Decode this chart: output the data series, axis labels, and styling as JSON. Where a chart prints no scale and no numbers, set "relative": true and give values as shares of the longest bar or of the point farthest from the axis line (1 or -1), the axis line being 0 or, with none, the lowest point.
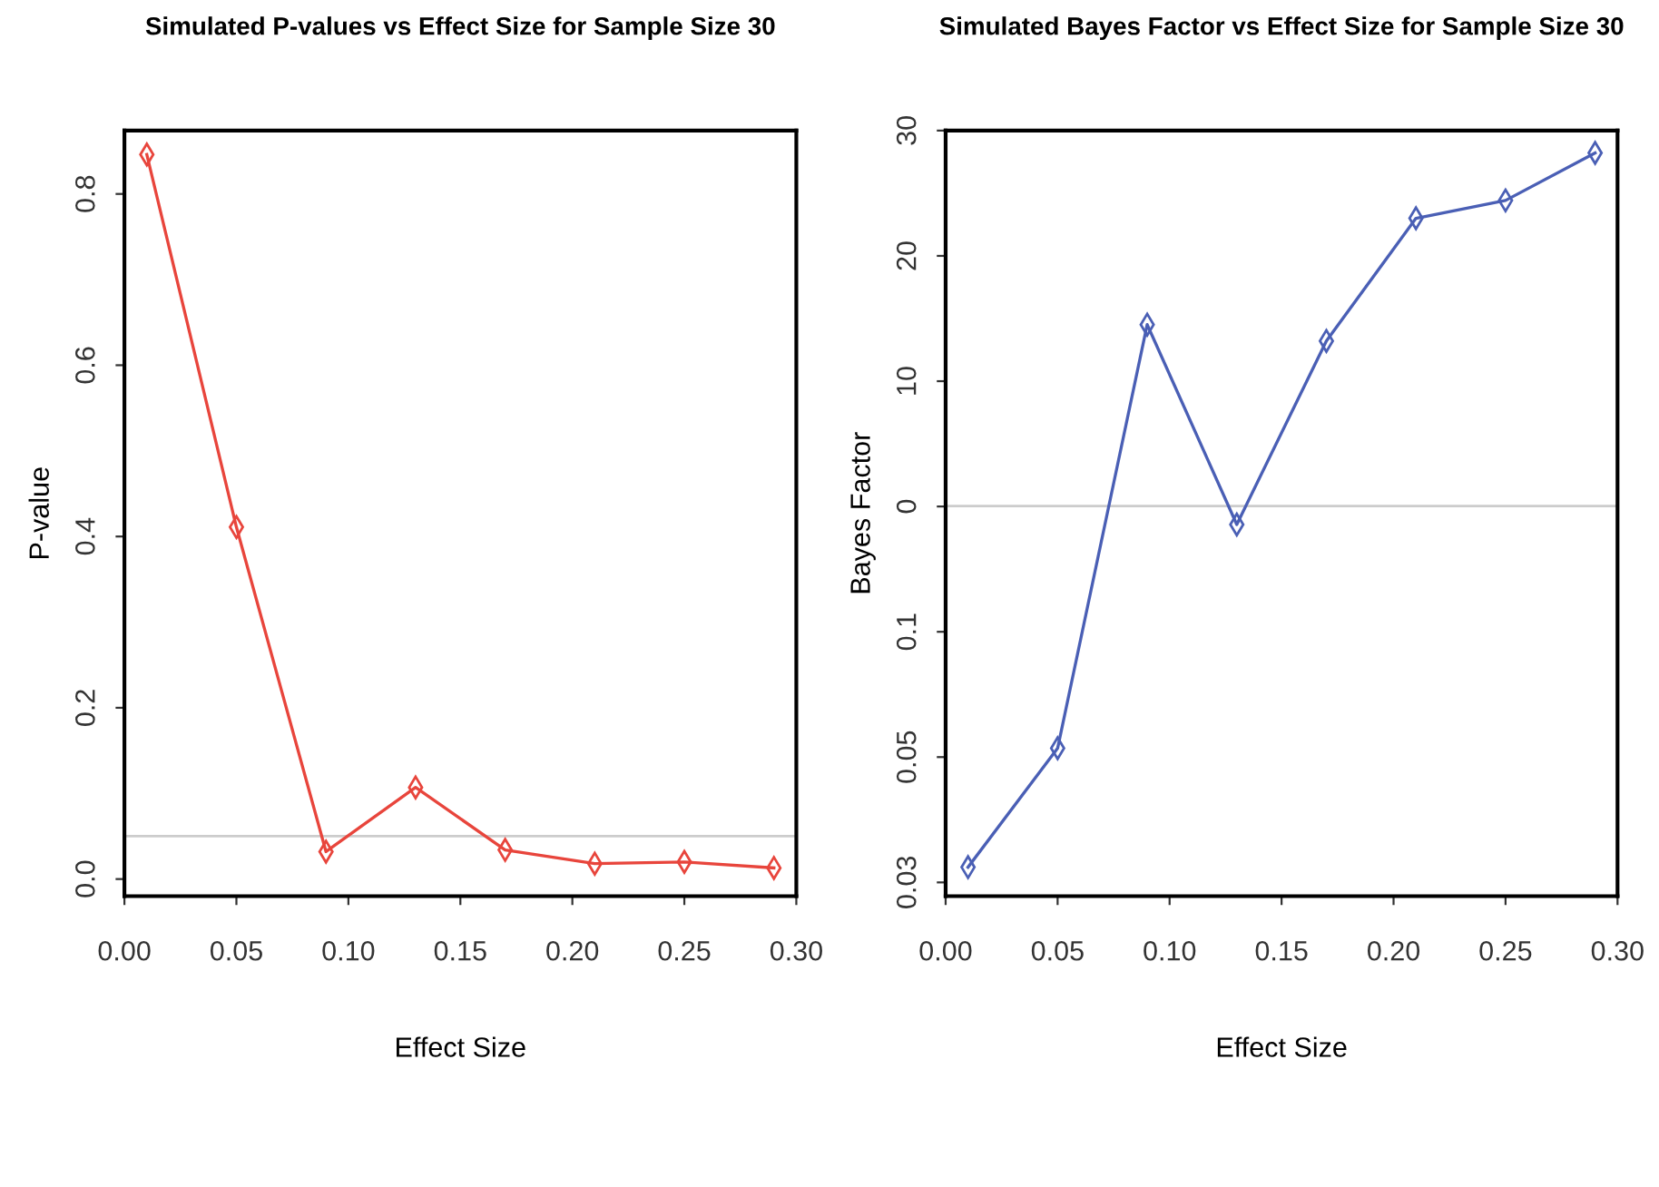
{
  "chart_data": [
    {
      "type": "line",
      "title": "Simulated P-values vs Effect Size for Sample Size 30",
      "xlabel": "Effect Size",
      "ylabel": "P-value",
      "x": [
        0.01,
        0.05,
        0.09,
        0.13,
        0.17,
        0.21,
        0.25,
        0.29
      ],
      "series": [
        {
          "color": "#e8453c",
          "values": [
            0.846,
            0.411,
            0.032,
            0.107,
            0.034,
            0.018,
            0.02,
            0.013
          ]
        }
      ],
      "xlim": [
        0,
        0.3
      ],
      "xticks": [
        {
          "value": 0,
          "label": "0.00"
        },
        0.05,
        {
          "value": 0.1,
          "label": "0.10"
        },
        0.15,
        {
          "value": 0.2,
          "label": "0.20"
        },
        0.25,
        {
          "value": 0.3,
          "label": "0.30"
        }
      ],
      "ylim": [
        -0.02,
        0.874
      ],
      "yticks": [
        {
          "value": 0,
          "label": "0.0"
        },
        0.2,
        0.4,
        0.6,
        0.8
      ],
      "ref_lines": [
        {
          "axis": "y",
          "value": 0.05,
          "color": "#cccccc"
        }
      ],
      "marker": "diamond",
      "grid": false
    },
    {
      "type": "line",
      "title": "Simulated Bayes Factor vs Effect Size for Sample Size 30",
      "xlabel": "Effect Size",
      "ylabel": "Bayes Factor",
      "x": [
        0.01,
        0.05,
        0.09,
        0.13,
        0.17,
        0.21,
        0.25,
        0.29
      ],
      "relative": true,
      "series": [
        {
          "color": "#4a5fb5",
          "values": [
            0.039,
            0.199,
            0.769,
            0.5,
            0.747,
            0.912,
            0.936,
            1
          ]
        }
      ],
      "xlim": [
        0,
        0.3
      ],
      "xticks": [
        {
          "value": 0,
          "label": "0.00"
        },
        0.05,
        {
          "value": 0.1,
          "label": "0.10"
        },
        0.15,
        {
          "value": 0.2,
          "label": "0.20"
        },
        0.25,
        {
          "value": 0.3,
          "label": "0.30"
        }
      ],
      "y_categories": [
        "30",
        "20",
        "10",
        "0",
        "0.1",
        "0.05",
        "0.03"
      ],
      "ref_lines": [
        {
          "axis": "y",
          "value": 0.525,
          "color": "#cccccc"
        }
      ],
      "marker": "diamond",
      "grid": false
    }
  ]
}
